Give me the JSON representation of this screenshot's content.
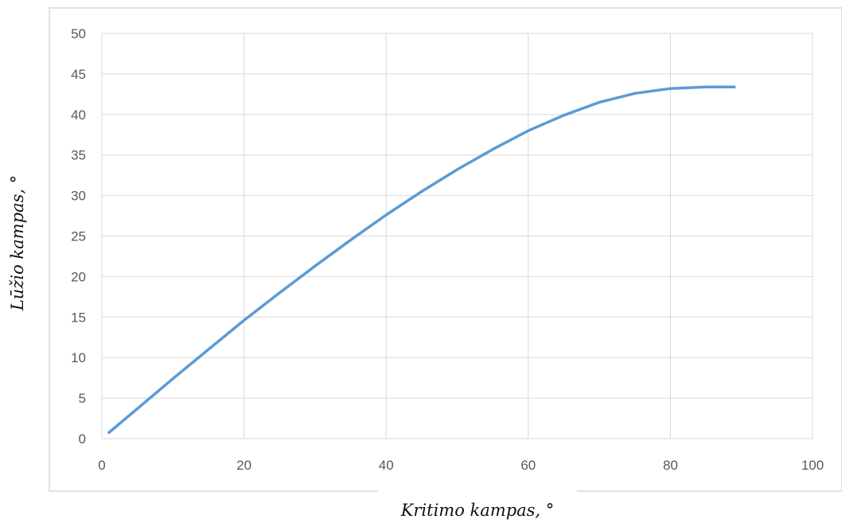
{
  "chart_data": {
    "type": "line",
    "title": "",
    "xlabel": "Kritimo kampas, °",
    "ylabel": "Lūžio kampas, °",
    "xlim": [
      0,
      100
    ],
    "ylim": [
      0,
      50
    ],
    "x_ticks": [
      "0",
      "20",
      "40",
      "60",
      "80",
      "100"
    ],
    "y_ticks": [
      "0",
      "5",
      "10",
      "15",
      "20",
      "25",
      "30",
      "35",
      "40",
      "45",
      "50"
    ],
    "grid": true,
    "legend": "none",
    "series": [
      {
        "color": "#5b9bd5",
        "points": [
          [
            1,
            0.75
          ],
          [
            5,
            3.7
          ],
          [
            10,
            7.4
          ],
          [
            15,
            11.0
          ],
          [
            20,
            14.6
          ],
          [
            25,
            18.0
          ],
          [
            30,
            21.3
          ],
          [
            35,
            24.5
          ],
          [
            40,
            27.6
          ],
          [
            45,
            30.5
          ],
          [
            50,
            33.2
          ],
          [
            55,
            35.7
          ],
          [
            60,
            38.0
          ],
          [
            65,
            39.9
          ],
          [
            70,
            41.5
          ],
          [
            75,
            42.6
          ],
          [
            80,
            43.2
          ],
          [
            85,
            43.4
          ],
          [
            89,
            43.4
          ]
        ]
      }
    ]
  }
}
